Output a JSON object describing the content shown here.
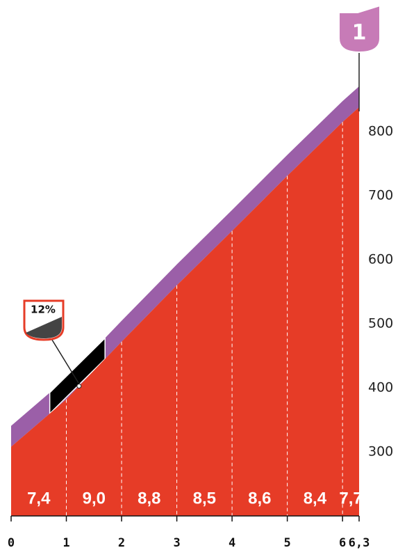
{
  "chart_data": {
    "type": "profile",
    "climb_number": "1",
    "x": [
      0,
      1,
      2,
      3,
      4,
      5,
      6,
      6.3
    ],
    "values": [
      308,
      382,
      472,
      560,
      645,
      731,
      815,
      838
    ],
    "color": "#e63c27",
    "band_color": "#9b5fa8",
    "gradients": [
      7.4,
      9.0,
      8.8,
      8.5,
      8.6,
      8.4,
      7.7
    ],
    "gradient_labels": [
      "7,4",
      "9,0",
      "8,8",
      "8,5",
      "8,6",
      "8,4",
      "7,7"
    ],
    "steepest": {
      "label": "12%",
      "from": 0.7,
      "to": 1.7
    },
    "xlim": [
      0,
      6.3
    ],
    "xticks": [
      0,
      1,
      2,
      3,
      4,
      5,
      6,
      {
        "value": 6.3,
        "label": "6,3"
      }
    ],
    "ylim": [
      200,
      900
    ],
    "yticks": [
      300,
      400,
      500,
      600,
      700,
      800
    ]
  }
}
